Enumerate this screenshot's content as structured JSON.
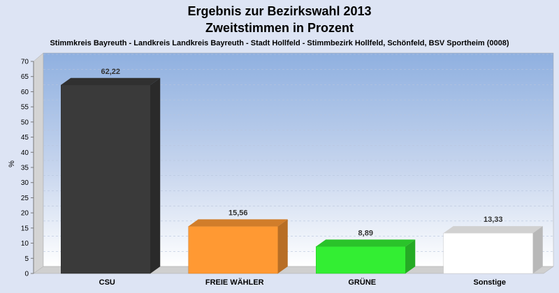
{
  "chart_data": {
    "type": "bar",
    "title": "Ergebnis zur Bezirkswahl 2013",
    "title2": "Zweitstimmen in Prozent",
    "subtitle": "Stimmkreis Bayreuth - Landkreis Landkreis Bayreuth - Stadt Hollfeld - Stimmbezirk Hollfeld, Schönfeld, BSV Sportheim (0008)",
    "ylabel": "%",
    "ylim": [
      0,
      70
    ],
    "yticks": [
      0,
      5,
      10,
      15,
      20,
      25,
      30,
      35,
      40,
      45,
      50,
      55,
      60,
      65,
      70
    ],
    "categories": [
      "CSU",
      "FREIE WÄHLER",
      "GRÜNE",
      "Sonstige"
    ],
    "values": [
      62.22,
      15.56,
      8.89,
      13.33
    ],
    "value_labels": [
      "62,22",
      "15,56",
      "8,89",
      "13,33"
    ],
    "colors": [
      "#3a3a3a",
      "#ff9933",
      "#33ee33",
      "#ffffff"
    ],
    "grid": true,
    "legend": "none"
  }
}
